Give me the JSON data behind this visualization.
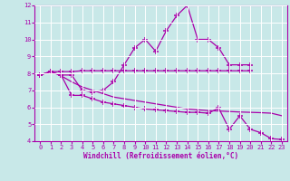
{
  "xlabel": "Windchill (Refroidissement éolien,°C)",
  "bg_color": "#c8e8e8",
  "line_color": "#aa00aa",
  "grid_color": "#ffffff",
  "spine_color": "#aa00aa",
  "xlim": [
    -0.5,
    23.5
  ],
  "ylim": [
    4,
    12
  ],
  "xticks": [
    0,
    1,
    2,
    3,
    4,
    5,
    6,
    7,
    8,
    9,
    10,
    11,
    12,
    13,
    14,
    15,
    16,
    17,
    18,
    19,
    20,
    21,
    22,
    23
  ],
  "yticks": [
    4,
    5,
    6,
    7,
    8,
    9,
    10,
    11,
    12
  ],
  "line1_x": [
    0,
    1,
    2,
    3,
    4,
    5,
    6,
    7,
    8,
    9,
    10,
    11,
    12,
    13,
    14,
    15,
    16,
    17,
    18,
    19,
    20
  ],
  "line1_y": [
    7.9,
    8.1,
    7.9,
    7.9,
    7.0,
    6.9,
    7.0,
    7.5,
    8.5,
    9.5,
    10.0,
    9.3,
    10.5,
    11.4,
    12.0,
    10.0,
    10.0,
    9.5,
    8.5,
    8.5,
    8.5
  ],
  "line2_x": [
    0,
    1,
    2,
    3,
    4,
    5,
    6,
    7,
    8,
    9,
    10,
    11,
    12,
    13,
    14,
    15,
    16,
    17,
    18,
    19,
    20
  ],
  "line2_y": [
    7.9,
    8.1,
    8.1,
    8.1,
    8.15,
    8.15,
    8.15,
    8.15,
    8.15,
    8.15,
    8.15,
    8.15,
    8.15,
    8.15,
    8.15,
    8.15,
    8.15,
    8.15,
    8.15,
    8.15,
    8.15
  ],
  "line3_x": [
    0,
    1,
    2,
    3,
    4,
    5,
    6,
    7,
    8,
    9,
    10,
    11,
    12,
    13,
    14,
    15,
    16,
    17,
    18,
    19,
    20,
    21,
    22,
    23
  ],
  "line3_y": [
    7.9,
    8.1,
    7.85,
    7.5,
    7.2,
    7.0,
    6.8,
    6.6,
    6.5,
    6.4,
    6.3,
    6.2,
    6.1,
    6.0,
    5.9,
    5.85,
    5.8,
    5.78,
    5.75,
    5.72,
    5.7,
    5.68,
    5.65,
    5.5
  ],
  "line4_x": [
    2,
    3,
    4,
    5,
    6,
    7,
    8,
    9,
    10,
    11,
    12,
    13,
    14,
    15,
    16,
    17,
    18,
    19,
    20,
    21,
    22,
    23
  ],
  "line4_y": [
    7.9,
    6.7,
    6.7,
    6.5,
    6.3,
    6.2,
    6.1,
    6.0,
    5.9,
    5.85,
    5.8,
    5.75,
    5.7,
    5.7,
    5.65,
    5.95,
    4.7,
    5.5,
    4.7,
    4.5,
    4.15,
    4.1
  ],
  "marker": "+",
  "tick_fontsize": 5,
  "xlabel_fontsize": 5.5
}
